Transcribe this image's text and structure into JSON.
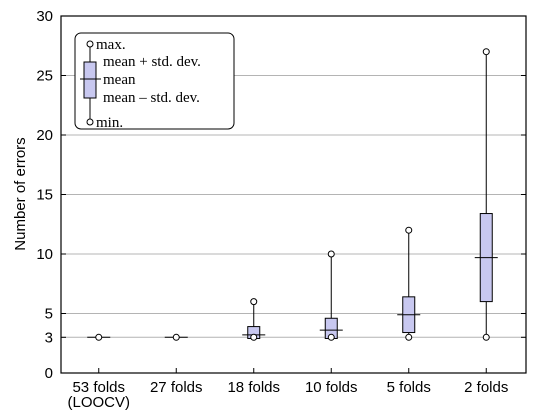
{
  "chart_data": {
    "type": "boxplot",
    "ylabel": "Number of errors",
    "ylim": [
      0,
      30
    ],
    "yticks": [
      0,
      3,
      5,
      10,
      15,
      20,
      25,
      30
    ],
    "gridlines_y": [
      3,
      5,
      10,
      15,
      20,
      25
    ],
    "categories": [
      "53 folds\n(LOOCV)",
      "27 folds",
      "18 folds",
      "10 folds",
      "5 folds",
      "2 folds"
    ],
    "series": [
      {
        "min": 3,
        "mean_minus_std": 3,
        "mean": 3,
        "mean_plus_std": 3,
        "max": 3
      },
      {
        "min": 3,
        "mean_minus_std": 3,
        "mean": 3,
        "mean_plus_std": 3,
        "max": 3
      },
      {
        "min": 3,
        "mean_minus_std": 2.9,
        "mean": 3.2,
        "mean_plus_std": 3.9,
        "max": 6
      },
      {
        "min": 3,
        "mean_minus_std": 2.9,
        "mean": 3.6,
        "mean_plus_std": 4.6,
        "max": 10
      },
      {
        "min": 3,
        "mean_minus_std": 3.4,
        "mean": 4.9,
        "mean_plus_std": 6.4,
        "max": 12
      },
      {
        "min": 3,
        "mean_minus_std": 6,
        "mean": 9.7,
        "mean_plus_std": 13.4,
        "max": 27
      }
    ],
    "box_color": "#c8c8f0",
    "grid": true,
    "legend": {
      "placement": "top-left",
      "max": "max.",
      "mean_plus_std": "mean + std. dev.",
      "mean": "mean",
      "mean_minus_std": "mean – std. dev.",
      "min": "min."
    }
  }
}
